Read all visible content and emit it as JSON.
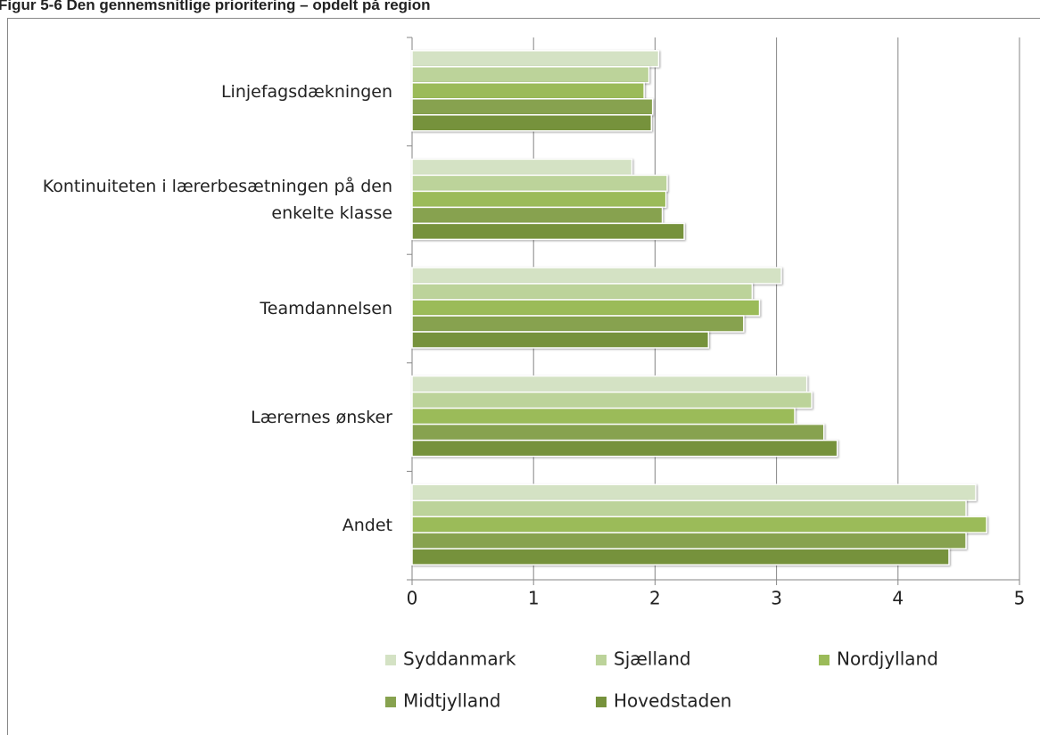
{
  "chart_data": {
    "type": "bar",
    "orientation": "horizontal",
    "title": "Figur 5-6 Den gennemsnitlige prioritering – opdelt på region",
    "categories": [
      "Linjefagsdækningen",
      "Kontinuiteten i lærerbesætningen på den enkelte klasse",
      "Teamdannelsen",
      "Lærernes ønsker",
      "Andet"
    ],
    "series": [
      {
        "name": "Syddanmark",
        "color": "#d4e2c4",
        "values": [
          2.03,
          1.81,
          3.04,
          3.25,
          4.64
        ]
      },
      {
        "name": "Sjælland",
        "color": "#bcd39a",
        "values": [
          1.95,
          2.1,
          2.8,
          3.29,
          4.56
        ]
      },
      {
        "name": "Nordjylland",
        "color": "#9bbb59",
        "values": [
          1.91,
          2.09,
          2.86,
          3.15,
          4.73
        ]
      },
      {
        "name": "Midtjylland",
        "color": "#87a24f",
        "values": [
          1.98,
          2.06,
          2.73,
          3.39,
          4.56
        ]
      },
      {
        "name": "Hovedstaden",
        "color": "#76923c",
        "values": [
          1.97,
          2.24,
          2.44,
          3.5,
          4.42
        ]
      }
    ],
    "xlim": [
      0,
      5
    ],
    "xticks": [
      0,
      1,
      2,
      3,
      4,
      5
    ],
    "grid": true,
    "legend": "bottom"
  }
}
